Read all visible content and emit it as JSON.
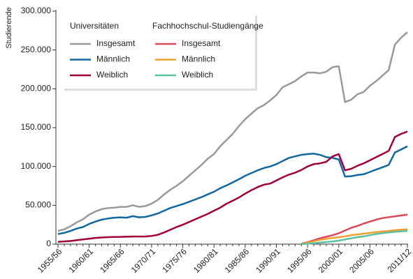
{
  "chart_data": {
    "type": "line",
    "ylabel": "Studierende",
    "legend_titles": [
      "Universitäten",
      "Fachhochschul-Studiengänge"
    ],
    "categories": [
      "1955/56",
      null,
      null,
      null,
      null,
      "1960/61",
      null,
      null,
      null,
      null,
      "1965/66",
      null,
      null,
      null,
      null,
      "1970/71",
      null,
      null,
      null,
      null,
      "1975/76",
      null,
      null,
      null,
      null,
      "1980/81",
      null,
      null,
      null,
      null,
      "1985/86",
      null,
      null,
      null,
      null,
      "1990/91",
      null,
      null,
      null,
      null,
      "1995/96",
      null,
      null,
      null,
      null,
      "2000/01",
      null,
      null,
      null,
      null,
      "2005/06",
      null,
      null,
      null,
      null,
      null,
      "2011/12"
    ],
    "ylim": [
      0,
      300000
    ],
    "yticks": [
      0,
      {
        "value": 50000,
        "label": "50.000"
      },
      {
        "value": 100000,
        "label": "100.000"
      },
      {
        "value": 150000,
        "label": "150.000"
      },
      {
        "value": 200000,
        "label": "200.000"
      },
      {
        "value": 250000,
        "label": "250.000"
      },
      {
        "value": 300000,
        "label": "300.000"
      }
    ],
    "series": [
      {
        "name": "Insgesamt",
        "color": "#999999",
        "values": [
          17000,
          19000,
          23000,
          28000,
          32000,
          38000,
          42000,
          45000,
          46500,
          47000,
          48000,
          48000,
          50000,
          48000,
          49000,
          52000,
          57000,
          64000,
          70000,
          75000,
          81000,
          88000,
          95000,
          102000,
          110000,
          116000,
          126000,
          134000,
          142000,
          152000,
          161000,
          168000,
          175000,
          179000,
          185000,
          192000,
          202000,
          206000,
          210000,
          216000,
          221000,
          221000,
          220000,
          222000,
          228000,
          229000,
          183000,
          186000,
          193000,
          196000,
          204000,
          210000,
          217000,
          224000,
          257000,
          266000,
          273000
        ]
      },
      {
        "name": "Männlich",
        "color": "#11679f",
        "values": [
          13000,
          14500,
          17000,
          20000,
          22000,
          26000,
          29000,
          31500,
          33000,
          34000,
          34500,
          34000,
          36000,
          34500,
          35000,
          37000,
          39500,
          43000,
          46500,
          49000,
          51500,
          54500,
          57500,
          60500,
          64000,
          67500,
          72000,
          75500,
          79500,
          83500,
          88000,
          91500,
          95000,
          98000,
          100000,
          103000,
          107000,
          111000,
          113000,
          115000,
          116000,
          116500,
          115000,
          112000,
          111000,
          109000,
          87000,
          87500,
          89000,
          90000,
          93000,
          96000,
          99000,
          102000,
          118000,
          122000,
          126000
        ]
      },
      {
        "name": "Weiblich",
        "color": "#a0003c",
        "values": [
          3000,
          3500,
          4000,
          5000,
          6000,
          7000,
          8000,
          8500,
          9000,
          9200,
          9300,
          9500,
          9800,
          9800,
          9800,
          10500,
          12000,
          15000,
          18500,
          22000,
          25000,
          28500,
          32000,
          35500,
          39000,
          43000,
          47000,
          52000,
          56000,
          60000,
          65000,
          69500,
          73500,
          76500,
          78000,
          82000,
          86000,
          89500,
          92000,
          95500,
          100000,
          103000,
          104000,
          106000,
          113000,
          116000,
          95000,
          97000,
          101000,
          104000,
          108000,
          112000,
          116000,
          120000,
          138000,
          142000,
          145000
        ]
      },
      {
        "name": "Insgesamt",
        "color": "#d9485a",
        "values": [
          null,
          null,
          null,
          null,
          null,
          null,
          null,
          null,
          null,
          null,
          null,
          null,
          null,
          null,
          null,
          null,
          null,
          null,
          null,
          null,
          null,
          null,
          null,
          null,
          null,
          null,
          null,
          null,
          null,
          null,
          null,
          null,
          null,
          null,
          null,
          null,
          null,
          null,
          null,
          500,
          2500,
          5000,
          7500,
          9500,
          11500,
          14000,
          17500,
          21000,
          23500,
          26500,
          29000,
          31500,
          33500,
          34800,
          35800,
          36900,
          38000
        ]
      },
      {
        "name": "Männlich",
        "color": "#f0a030",
        "values": [
          null,
          null,
          null,
          null,
          null,
          null,
          null,
          null,
          null,
          null,
          null,
          null,
          null,
          null,
          null,
          null,
          null,
          null,
          null,
          null,
          null,
          null,
          null,
          null,
          null,
          null,
          null,
          null,
          null,
          null,
          null,
          null,
          null,
          null,
          null,
          null,
          null,
          null,
          null,
          400,
          2000,
          3800,
          5500,
          6800,
          8000,
          9000,
          10000,
          11500,
          12500,
          13500,
          14500,
          15500,
          16300,
          17000,
          18000,
          18700,
          19000
        ]
      },
      {
        "name": "Weiblich",
        "color": "#5cbfa0",
        "values": [
          null,
          null,
          null,
          null,
          null,
          null,
          null,
          null,
          null,
          null,
          null,
          null,
          null,
          null,
          null,
          null,
          null,
          null,
          null,
          null,
          null,
          null,
          null,
          null,
          null,
          null,
          null,
          null,
          null,
          null,
          null,
          null,
          null,
          null,
          null,
          null,
          null,
          null,
          null,
          100,
          500,
          1200,
          2000,
          2700,
          3500,
          4500,
          6000,
          7500,
          9000,
          10000,
          11500,
          13000,
          14000,
          15000,
          15800,
          16500,
          17000
        ]
      }
    ]
  }
}
